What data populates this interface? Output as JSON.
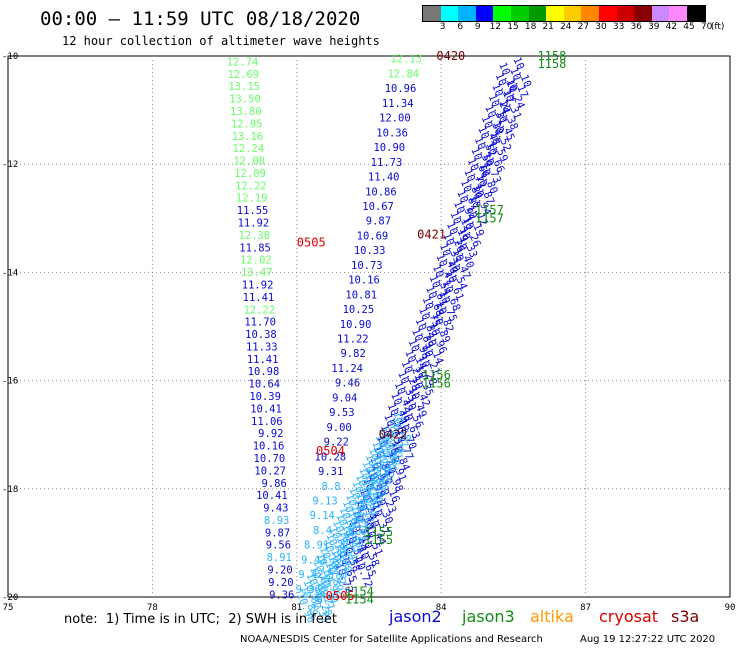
{
  "header": {
    "title": "00:00 — 11:59 UTC 08/18/2020",
    "subtitle": "12 hour collection of altimeter wave heights"
  },
  "colorbar": {
    "labels": [
      "3",
      "6",
      "9",
      "12",
      "15",
      "18",
      "21",
      "24",
      "27",
      "30",
      "33",
      "36",
      "39",
      "42",
      "45",
      "70",
      "(ft)"
    ],
    "colors": [
      "#777777",
      "#00ffff",
      "#00b4ff",
      "#0000ff",
      "#00ff00",
      "#00cc00",
      "#009900",
      "#ffff00",
      "#ffcc00",
      "#ff8800",
      "#ff0000",
      "#cc0000",
      "#880000",
      "#cc88ff",
      "#ff88ff",
      "#000000"
    ]
  },
  "colors": {
    "jason2": "#0a0ad2",
    "jason3": "#138c13",
    "altika": "#ff9900",
    "cryosat": "#dd0000",
    "s3a": "#7a0000",
    "lightgreen": "#66ff66",
    "cyan": "#2ab4ff"
  },
  "map": {
    "lon_min": 75,
    "lon_max": 90,
    "lat_min": -20,
    "lat_max": -10,
    "lon_ticks": [
      "75",
      "78",
      "81",
      "84",
      "87",
      "90"
    ],
    "lat_ticks": [
      "-10",
      "-12",
      "-14",
      "-16",
      "-18",
      "-20"
    ],
    "track_west": {
      "light_values": [
        "12.74",
        "12.69",
        "13.15",
        "13.50",
        "13.80",
        "12.95",
        "13.16",
        "12.24",
        "12.08",
        "12.09",
        "12.22",
        "12.19"
      ],
      "blue_values_a": [
        "11.55",
        "11.92"
      ],
      "light_value_b": "12.38",
      "blue_value_b": "11.85",
      "light_values_c": [
        "12.02",
        "13.47"
      ],
      "blue_values_c": [
        "11.92",
        "11.41"
      ],
      "light_value_d": "12.22",
      "blue_values_d": [
        "11.70",
        "10.38",
        "11.33",
        "11.41",
        "10.98",
        "10.64",
        "10.39",
        "10.41",
        "11.06",
        "9.92",
        "10.16",
        "10.70",
        "10.27",
        "9.86",
        "10.41",
        "9.43"
      ],
      "cyan_value_e": "8.93",
      "blue_values_e": [
        "9.87",
        "9.56"
      ],
      "cyan_value_f": "8.91",
      "blue_values_f": [
        "9.20",
        "9.20",
        "9.36"
      ]
    },
    "track_east_values": [
      "12.13",
      "12.84",
      "10.96",
      "11.34",
      "12.00",
      "10.36",
      "10.90",
      "11.73",
      "11.40",
      "10.86",
      "10.67",
      "9.87",
      "10.69",
      "10.33",
      "10.73",
      "10.16",
      "10.81",
      "10.25",
      "10.90",
      "11.22",
      "9.82",
      "11.24",
      "9.46",
      "9.04",
      "9.53",
      "9.00",
      "9.22",
      "10.28",
      "9.31",
      "8.8",
      "9.13",
      "9.14",
      "8.4",
      "8.91",
      "9.43",
      "9.42",
      "9.36"
    ],
    "time_labels": [
      {
        "text": "0420",
        "color": "s3a",
        "lon": 83.9,
        "lat": -10.0
      },
      {
        "text": "0505",
        "color": "cryosat",
        "lon": 81.0,
        "lat": -13.45
      },
      {
        "text": "0421",
        "color": "s3a",
        "lon": 83.5,
        "lat": -13.3
      },
      {
        "text": "0422",
        "color": "s3a",
        "lon": 82.7,
        "lat": -17.0
      },
      {
        "text": "0504",
        "color": "cryosat",
        "lon": 81.4,
        "lat": -17.3
      },
      {
        "text": "0505",
        "color": "cryosat",
        "lon": 81.6,
        "lat": -19.98
      },
      {
        "text": "1158",
        "color": "jason3",
        "lon": 86.0,
        "lat": -10.0
      },
      {
        "text": "1158",
        "color": "jason3",
        "lon": 86.0,
        "lat": -10.15
      },
      {
        "text": "1157",
        "color": "jason3",
        "lon": 84.7,
        "lat": -12.85
      },
      {
        "text": "1157",
        "color": "jason3",
        "lon": 84.7,
        "lat": -13.0
      },
      {
        "text": "1156",
        "color": "jason3",
        "lon": 83.6,
        "lat": -15.9
      },
      {
        "text": "1156",
        "color": "jason3",
        "lon": 83.6,
        "lat": -16.05
      },
      {
        "text": "1155",
        "color": "jason3",
        "lon": 82.4,
        "lat": -18.8
      },
      {
        "text": "1155",
        "color": "jason3",
        "lon": 82.4,
        "lat": -18.95
      },
      {
        "text": "1154",
        "color": "jason3",
        "lon": 82.0,
        "lat": -19.9
      },
      {
        "text": "1154",
        "color": "jason3",
        "lon": 82.0,
        "lat": -20.05
      }
    ]
  },
  "notes": {
    "text": "note:  1) Time is in UTC;  2) SWH is in feet"
  },
  "satellites": [
    {
      "name": "jason2",
      "color": "jason2"
    },
    {
      "name": "jason3",
      "color": "jason3"
    },
    {
      "name": "altika",
      "color": "altika"
    },
    {
      "name": "cryosat",
      "color": "cryosat"
    },
    {
      "name": "s3a",
      "color": "s3a"
    }
  ],
  "footer": {
    "credit": "NOAA/NESDIS Center for Satellite Applications and Research",
    "timestamp": "Aug 19 12:27:22 UTC 2020"
  }
}
